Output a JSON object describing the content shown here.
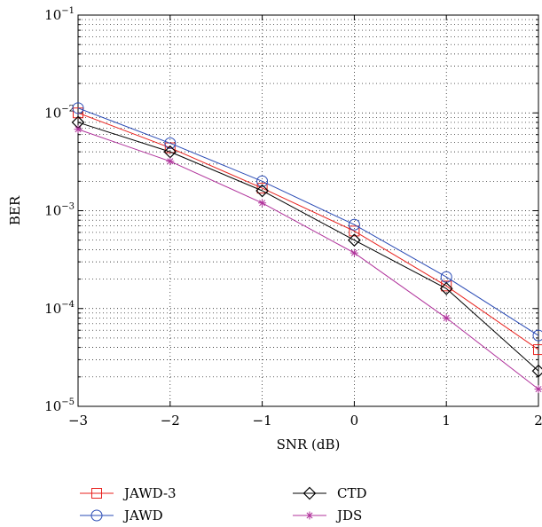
{
  "chart_data": {
    "type": "line",
    "title": "",
    "xlabel": "SNR (dB)",
    "ylabel": "BER",
    "xlim": [
      -3,
      2
    ],
    "ylim": [
      1e-05,
      0.1
    ],
    "yscale": "log",
    "grid": true,
    "x_ticks": [
      -3,
      -2,
      -1,
      0,
      1,
      2
    ],
    "x_tick_labels": [
      "−3",
      "−2",
      "−1",
      "0",
      "1",
      "2"
    ],
    "y_ticks": [
      {
        "value": 1e-05,
        "base": "10",
        "exp": "−5"
      },
      {
        "value": 0.0001,
        "base": "10",
        "exp": "−4"
      },
      {
        "value": 0.001,
        "base": "10",
        "exp": "−3"
      },
      {
        "value": 0.01,
        "base": "10",
        "exp": "−2"
      },
      {
        "value": 0.1,
        "base": "10",
        "exp": "−1"
      }
    ],
    "legend_position": "bottom",
    "x": [
      -3,
      -2,
      -1,
      0,
      1,
      2
    ],
    "series": [
      {
        "name": "JAWD-3",
        "color": "#e8211d",
        "marker": "square",
        "values": [
          0.01,
          0.0044,
          0.0017,
          0.00062,
          0.00017,
          3.8e-05
        ]
      },
      {
        "name": "JAWD",
        "color": "#2a4bb5",
        "marker": "circle",
        "values": [
          0.0112,
          0.0049,
          0.002,
          0.00072,
          0.00021,
          5.3e-05
        ]
      },
      {
        "name": "CTD",
        "color": "#000000",
        "marker": "diamond",
        "values": [
          0.008,
          0.004,
          0.0016,
          0.0005,
          0.00016,
          2.3e-05
        ]
      },
      {
        "name": "JDS",
        "color": "#b0329b",
        "marker": "star",
        "values": [
          0.0068,
          0.0032,
          0.0012,
          0.00037,
          8e-05,
          1.5e-05
        ]
      }
    ]
  }
}
